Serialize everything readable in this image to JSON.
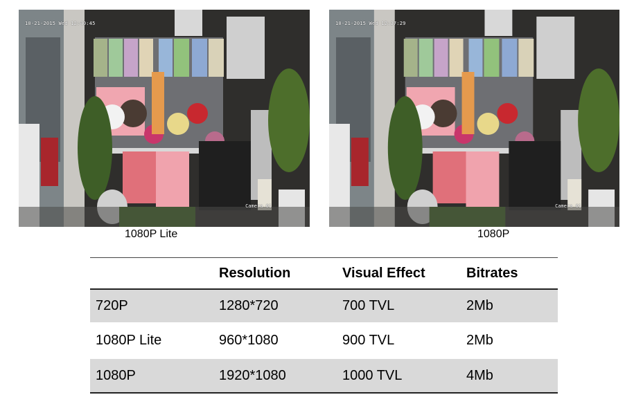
{
  "cameras": [
    {
      "osd_time": "10-21-2015 Wed 12:40:45",
      "camera_label": "Camera 01",
      "caption": "1080P Lite"
    },
    {
      "osd_time": "10-21-2015 Wed 12:37:29",
      "camera_label": "Camera 01",
      "caption": "1080P"
    }
  ],
  "table": {
    "headers": [
      "",
      "Resolution",
      "Visual Effect",
      "Bitrates"
    ],
    "rows": [
      [
        "720P",
        "1280*720",
        "700 TVL",
        "2Mb"
      ],
      [
        "1080P Lite",
        "960*1080",
        "900 TVL",
        "2Mb"
      ],
      [
        "1080P",
        "1920*1080",
        "1000 TVL",
        "4Mb"
      ]
    ]
  }
}
